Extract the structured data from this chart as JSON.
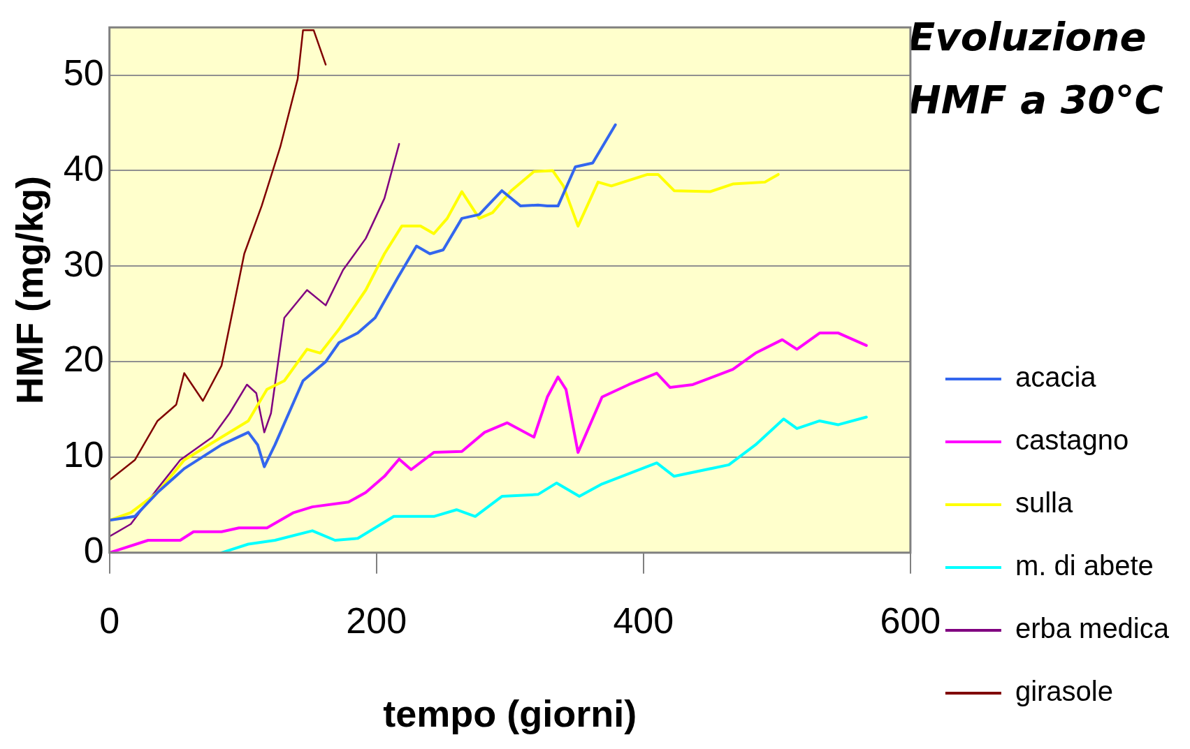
{
  "chart_data": {
    "type": "line",
    "title": "Evoluzione HMF a 30°C",
    "xlabel": "tempo (giorni)",
    "ylabel": "HMF (mg/kg)",
    "xlim": [
      0,
      600
    ],
    "xticks": [
      0,
      200,
      400,
      600
    ],
    "ylim": [
      0,
      55
    ],
    "yticks": [
      0,
      10,
      20,
      30,
      40,
      50
    ],
    "grid": "y",
    "legend": "right",
    "marker": "none",
    "line_style": "solid",
    "series": [
      {
        "name": "acacia",
        "color": "#3366ee",
        "x": [
          0,
          19,
          36,
          56,
          84,
          104,
          111,
          116,
          124,
          145,
          162,
          172,
          186,
          199,
          216,
          230,
          240,
          250,
          264,
          277,
          294,
          308,
          321,
          328,
          336,
          349,
          362,
          379
        ],
        "values": [
          3.4,
          3.8,
          6.3,
          8.8,
          11.3,
          12.6,
          11.3,
          9,
          11.3,
          18,
          20,
          22,
          23,
          24.6,
          28.8,
          32.1,
          31.3,
          31.7,
          35,
          35.4,
          37.9,
          36.3,
          36.4,
          36.3,
          36.3,
          40.4,
          40.8,
          44.8
        ]
      },
      {
        "name": "castagno",
        "color": "#ff00ff",
        "x": [
          0,
          29,
          53,
          63,
          84,
          97,
          118,
          138,
          152,
          179,
          192,
          206,
          217,
          226,
          243,
          264,
          281,
          298,
          318,
          328,
          336,
          342,
          351,
          369,
          389,
          410,
          420,
          437,
          467,
          484,
          504,
          515,
          532,
          546,
          567
        ],
        "values": [
          0,
          1.3,
          1.3,
          2.2,
          2.2,
          2.6,
          2.6,
          4.2,
          4.8,
          5.3,
          6.3,
          8,
          9.8,
          8.7,
          10.5,
          10.6,
          12.6,
          13.6,
          12.1,
          16.3,
          18.4,
          17.1,
          10.5,
          16.3,
          17.6,
          18.8,
          17.3,
          17.6,
          19.2,
          20.9,
          22.3,
          21.3,
          23,
          23,
          21.7
        ]
      },
      {
        "name": "sulla",
        "color": "#ffff00",
        "x": [
          0,
          16,
          36,
          56,
          84,
          104,
          118,
          131,
          148,
          158,
          172,
          192,
          206,
          219,
          233,
          243,
          253,
          264,
          277,
          287,
          301,
          318,
          332,
          340,
          351,
          366,
          376,
          403,
          411,
          423,
          450,
          467,
          491,
          501
        ],
        "values": [
          3.4,
          4.2,
          6.3,
          9.7,
          12.1,
          13.8,
          17.1,
          18,
          21.3,
          20.9,
          23.4,
          27.5,
          31.3,
          34.2,
          34.2,
          33.4,
          35,
          37.8,
          35,
          35.6,
          37.9,
          39.9,
          40,
          38.4,
          34.2,
          38.8,
          38.4,
          39.6,
          39.6,
          37.9,
          37.8,
          38.6,
          38.8,
          39.6
        ]
      },
      {
        "name": "m. di abete",
        "color": "#00ffff",
        "x": [
          84,
          104,
          124,
          152,
          169,
          186,
          213,
          243,
          260,
          274,
          294,
          321,
          335,
          352,
          369,
          410,
          423,
          464,
          484,
          505,
          515,
          532,
          546,
          567
        ],
        "values": [
          0,
          0.9,
          1.3,
          2.3,
          1.3,
          1.5,
          3.8,
          3.8,
          4.5,
          3.8,
          5.9,
          6.1,
          7.3,
          5.9,
          7.2,
          9.4,
          8,
          9.2,
          11.3,
          14,
          13,
          13.8,
          13.4,
          14.2
        ]
      },
      {
        "name": "erba medica",
        "color": "#800080",
        "x": [
          0,
          16,
          36,
          53,
          77,
          90,
          103,
          110,
          116,
          121,
          131,
          148,
          162,
          175,
          192,
          206,
          217
        ],
        "values": [
          1.7,
          3,
          6.7,
          9.7,
          12.1,
          14.6,
          17.6,
          16.7,
          12.6,
          14.6,
          24.6,
          27.5,
          25.9,
          29.6,
          32.9,
          37.1,
          42.8
        ]
      },
      {
        "name": "girasole",
        "color": "#800000",
        "x": [
          0,
          19,
          36,
          50,
          56,
          70,
          84,
          101,
          114,
          128,
          141,
          145,
          153,
          162
        ],
        "values": [
          7.6,
          9.7,
          13.8,
          15.5,
          18.8,
          15.9,
          19.6,
          31.3,
          36.3,
          42.5,
          49.6,
          54.7,
          54.7,
          51.1
        ]
      }
    ]
  }
}
